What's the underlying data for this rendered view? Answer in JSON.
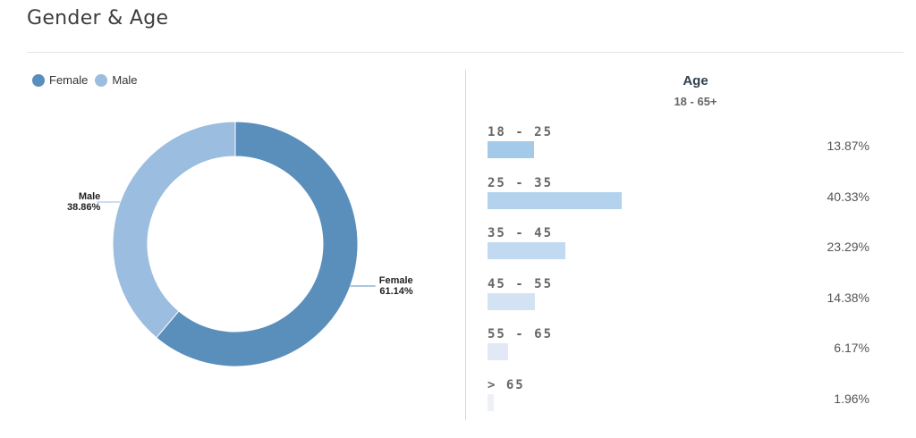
{
  "header": {
    "title": "Gender & Age"
  },
  "legend": [
    {
      "label": "Female",
      "color": "#5a8ebb"
    },
    {
      "label": "Male",
      "color": "#9bbde0"
    }
  ],
  "age_panel": {
    "title": "Age",
    "range": "18 - 65+"
  },
  "chart_data": [
    {
      "type": "pie",
      "donut": true,
      "title": "",
      "slices": [
        {
          "label": "Female",
          "value": 61.14,
          "display": "61.14%",
          "color": "#5a8ebb"
        },
        {
          "label": "Male",
          "value": 38.86,
          "display": "38.86%",
          "color": "#9bbde0"
        }
      ],
      "legend": "top-left"
    },
    {
      "type": "bar",
      "orientation": "horizontal",
      "title": "Age",
      "subtitle": "18 - 65+",
      "categories": [
        "18 - 25",
        "25 - 35",
        "35 - 45",
        "45 - 55",
        "55 - 65",
        "> 65"
      ],
      "values": [
        13.87,
        40.33,
        23.29,
        14.38,
        6.17,
        1.96
      ],
      "value_labels": [
        "13.87%",
        "40.33%",
        "23.29%",
        "14.38%",
        "6.17%",
        "1.96%"
      ],
      "colors": [
        "#a3cbe9",
        "#b2d2ee",
        "#c1daf1",
        "#d3e3f4",
        "#e2e8f6",
        "#eef0f8"
      ]
    }
  ]
}
